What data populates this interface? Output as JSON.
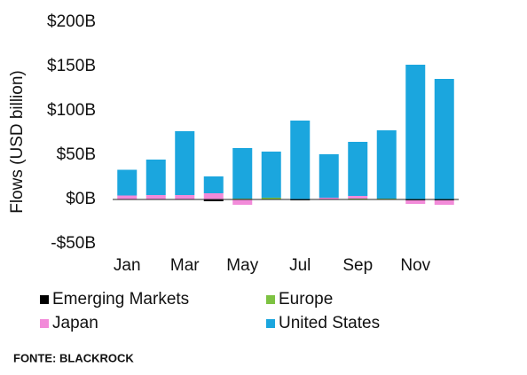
{
  "chart_data": {
    "type": "stacked-bar",
    "y_label": "Flows (USD billion)",
    "source": "FONTE: BLACKROCK",
    "categories": [
      "Jan",
      null,
      "Mar",
      null,
      "May",
      null,
      "Jul",
      null,
      "Sep",
      null,
      "Nov",
      null
    ],
    "series": [
      {
        "name": "Emerging Markets",
        "color": "#000000",
        "values": [
          0.5,
          0,
          0,
          -2,
          0,
          0,
          -1,
          0,
          0,
          0,
          -1,
          -1
        ]
      },
      {
        "name": "Europe",
        "color": "#7dc242",
        "values": [
          0,
          0,
          0,
          0,
          1,
          2,
          0,
          0,
          1,
          1,
          0,
          0
        ]
      },
      {
        "name": "Japan",
        "color": "#f28bd9",
        "values": [
          4,
          5,
          5,
          7,
          -6,
          0,
          0,
          2,
          3,
          0,
          -4,
          -5
        ]
      },
      {
        "name": "United States",
        "color": "#1ba6de",
        "values": [
          29,
          40,
          72,
          19,
          57,
          52,
          89,
          49,
          61,
          77,
          152,
          136
        ]
      }
    ],
    "ylim": [
      -50,
      200
    ],
    "yticks": [
      {
        "value": -50,
        "label": "-$50B"
      },
      {
        "value": 0,
        "label": "$0B"
      },
      {
        "value": 50,
        "label": "$50B"
      },
      {
        "value": 100,
        "label": "$100B"
      },
      {
        "value": 150,
        "label": "$150B"
      },
      {
        "value": 200,
        "label": "$200B"
      }
    ],
    "grid": false
  }
}
